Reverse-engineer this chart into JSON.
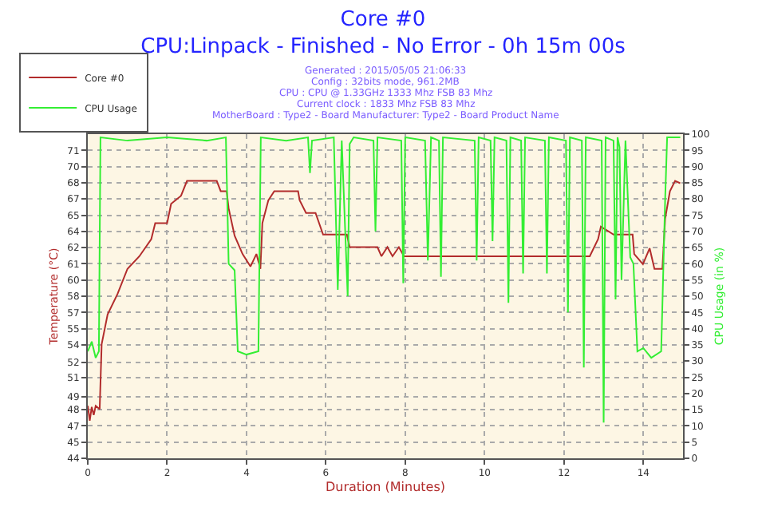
{
  "chart_data": {
    "type": "line",
    "title": "Core #0",
    "subtitle": "CPU:Linpack - Finished - No Error - 0h 15m 00s",
    "annotations": [
      "Generated : 2015/05/05 21:06:33",
      "Config : 32bits mode, 961.2MB",
      "CPU : CPU @ 1.33GHz 1333 Mhz FSB 83 Mhz",
      "Current clock : 1833 Mhz FSB 83 Mhz",
      "MotherBoard : Type2 - Board Manufacturer: Type2 - Board Product Name"
    ],
    "xlabel": "Duration (Minutes)",
    "ylabel": "Temperature (°C)",
    "y2label": "CPU Usage (in %)",
    "xlim": [
      0,
      15
    ],
    "xticks": [
      0,
      2,
      4,
      6,
      8,
      10,
      12,
      14
    ],
    "ylim": [
      44,
      72.4
    ],
    "yticks": [
      44,
      {
        "value": 45.42,
        "label": "45"
      },
      {
        "value": 46.84,
        "label": "47"
      },
      {
        "value": 48.26,
        "label": "48"
      },
      {
        "value": 49.4,
        "label": "49"
      },
      {
        "value": 51.1,
        "label": "51"
      },
      {
        "value": 52.4,
        "label": "52"
      },
      {
        "value": 53.94,
        "label": "54"
      },
      {
        "value": 55.36,
        "label": "55"
      },
      {
        "value": 56.78,
        "label": "57"
      },
      {
        "value": 58.2,
        "label": "58"
      },
      {
        "value": 59.62,
        "label": "60"
      },
      {
        "value": 61.04,
        "label": "61"
      },
      {
        "value": 62.46,
        "label": "62"
      },
      {
        "value": 63.88,
        "label": "64"
      },
      {
        "value": 65.3,
        "label": "65"
      },
      {
        "value": 66.72,
        "label": "67"
      },
      {
        "value": 68.14,
        "label": "68"
      },
      {
        "value": 69.56,
        "label": "70"
      },
      {
        "value": 70.98,
        "label": "71"
      }
    ],
    "y2lim": [
      0,
      100
    ],
    "y2ticks": [
      0,
      5,
      10,
      15,
      20,
      25,
      30,
      35,
      40,
      45,
      50,
      55,
      60,
      65,
      70,
      75,
      80,
      85,
      90,
      95,
      100
    ],
    "grid": true,
    "legend": "top left",
    "marker": "none",
    "line_style": "solid",
    "series": [
      {
        "name": "Core #0",
        "color": "#b22c2c",
        "x": [
          0,
          0.05,
          0.1,
          0.15,
          0.2,
          0.3,
          0.35,
          0.5,
          0.75,
          1.0,
          1.3,
          1.6,
          1.7,
          2.0,
          2.1,
          2.35,
          2.5,
          3.25,
          3.35,
          3.5,
          3.55,
          3.7,
          3.9,
          4.1,
          4.25,
          4.35,
          4.4,
          4.55,
          4.7,
          5.3,
          5.34,
          5.5,
          5.74,
          5.93,
          6.53,
          6.6,
          7.3,
          7.4,
          7.55,
          7.68,
          7.84,
          7.97,
          12.65,
          12.86,
          12.93,
          13.25,
          13.73,
          13.77,
          13.99,
          14.16,
          14.28,
          14.48,
          14.55,
          14.67,
          14.8,
          14.93
        ],
        "values": [
          48.6,
          47.3,
          48.5,
          47.8,
          48.6,
          48.3,
          54,
          56.6,
          58.4,
          60.6,
          61.7,
          63.2,
          64.6,
          64.6,
          66.3,
          67,
          68.3,
          68.3,
          67.4,
          67.4,
          65.9,
          63.5,
          61.9,
          60.8,
          61.9,
          60.6,
          64.6,
          66.6,
          67.4,
          67.4,
          66.6,
          65.5,
          65.5,
          63.6,
          63.6,
          62.5,
          62.5,
          61.7,
          62.5,
          61.7,
          62.5,
          61.7,
          61.7,
          63.2,
          64.3,
          63.6,
          63.6,
          61.9,
          61,
          62.4,
          60.6,
          60.6,
          65,
          67.4,
          68.3,
          68.1
        ]
      },
      {
        "name": "CPU Usage",
        "color": "#33ee33",
        "axis": "y2",
        "x": [
          0,
          0.1,
          0.2,
          0.28,
          0.32,
          1.0,
          2.0,
          3.0,
          3.48,
          3.55,
          3.7,
          3.78,
          4.0,
          4.3,
          4.36,
          5.0,
          5.55,
          5.6,
          5.65,
          6.2,
          6.3,
          6.4,
          6.55,
          6.6,
          6.7,
          7.2,
          7.25,
          7.3,
          7.9,
          7.95,
          8.0,
          8.5,
          8.57,
          8.65,
          8.85,
          8.9,
          8.95,
          9.75,
          9.8,
          9.85,
          10.15,
          10.2,
          10.25,
          10.55,
          10.6,
          10.65,
          10.92,
          10.97,
          11.02,
          11.52,
          11.57,
          11.62,
          12.05,
          12.1,
          12.15,
          12.45,
          12.5,
          12.55,
          12.95,
          13.0,
          13.05,
          13.25,
          13.3,
          13.35,
          13.4,
          13.45,
          13.55,
          13.67,
          13.75,
          13.85,
          14.0,
          14.2,
          14.45,
          14.55,
          14.6,
          14.93
        ],
        "values": [
          33,
          36,
          31,
          33,
          99,
          98,
          99,
          98,
          99,
          60,
          58,
          33,
          32,
          33,
          99,
          98,
          99,
          88,
          98,
          99,
          52,
          98,
          50,
          97,
          99,
          98,
          70,
          99,
          98,
          54,
          99,
          98,
          61,
          99,
          98,
          56,
          99,
          98,
          61,
          99,
          98,
          67,
          99,
          98,
          48,
          99,
          98,
          57,
          99,
          98,
          57,
          99,
          98,
          45,
          99,
          98,
          28,
          99,
          98,
          11,
          99,
          98,
          49,
          99,
          96,
          55,
          98,
          62,
          60,
          33,
          34,
          31,
          33,
          80,
          99,
          99
        ]
      }
    ]
  }
}
